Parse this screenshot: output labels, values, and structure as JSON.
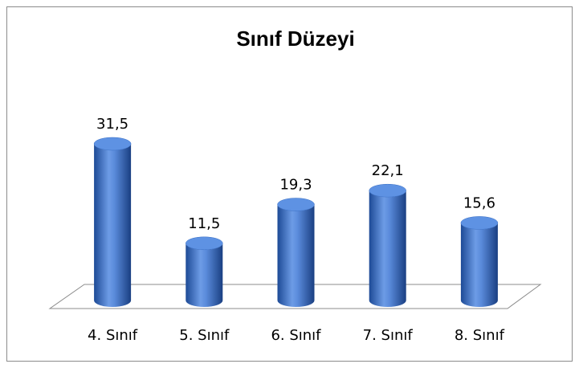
{
  "chart_data": {
    "type": "bar3d",
    "title": "Sınıf Düzeyi",
    "categories": [
      "4. Sınıf",
      "5. Sınıf",
      "6. Sınıf",
      "7. Sınıf",
      "8. Sınıf"
    ],
    "values": [
      31.5,
      11.5,
      19.3,
      22.1,
      15.6
    ],
    "value_labels": [
      "31,5",
      "11,5",
      "19,3",
      "22,1",
      "15,6"
    ],
    "color": "#3a6fc4"
  }
}
